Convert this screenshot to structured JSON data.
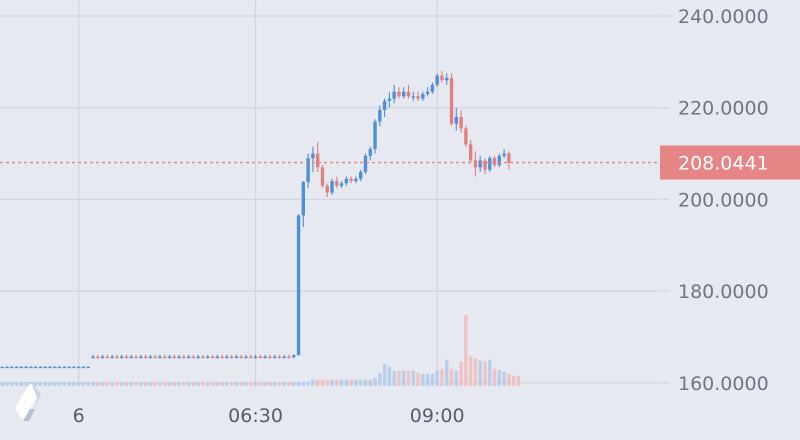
{
  "colors": {
    "background": "#e6e9ef",
    "grid": "#cfd5de",
    "up": "#4f8fd6",
    "down": "#e27f7f",
    "volume_up": "#b9cfe9",
    "volume_down": "#efc3c3",
    "axis_text": "#6f7683",
    "price_badge": "#e58585"
  },
  "logo_icon": "diamond-logo-icon",
  "chart_data": {
    "type": "candlestick",
    "title": "",
    "xlabel": "",
    "ylabel": "",
    "ylim": [
      159.3,
      243.5
    ],
    "y_ticks": [
      "240.0000",
      "220.0000",
      "200.0000",
      "180.0000",
      "160.0000"
    ],
    "y_tick_values": [
      240,
      220,
      200,
      180,
      160
    ],
    "x_tick_labels": [
      "6",
      "06:30",
      "09:00"
    ],
    "grid": true,
    "last_price": 208.0441,
    "last_price_label": "208.0441",
    "candles": [
      [
        163.5,
        163.5,
        163.5,
        163.5
      ],
      [
        163.5,
        163.6,
        163.4,
        163.5
      ],
      [
        163.5,
        163.6,
        163.4,
        163.5
      ],
      [
        163.5,
        163.6,
        163.4,
        163.5
      ],
      [
        163.5,
        163.6,
        163.4,
        163.5
      ],
      [
        163.5,
        163.6,
        163.4,
        163.5
      ],
      [
        163.5,
        163.6,
        163.4,
        163.5
      ],
      [
        163.5,
        163.6,
        163.4,
        163.5
      ],
      [
        163.5,
        163.6,
        163.4,
        163.5
      ],
      [
        163.5,
        163.6,
        163.4,
        163.5
      ],
      [
        163.5,
        163.6,
        163.4,
        163.5
      ],
      [
        163.5,
        163.6,
        163.4,
        163.5
      ],
      [
        163.5,
        163.6,
        163.4,
        163.5
      ],
      [
        163.5,
        163.6,
        163.4,
        163.5
      ],
      [
        163.5,
        163.6,
        163.4,
        163.5
      ],
      [
        163.5,
        163.6,
        163.4,
        163.5
      ],
      [
        163.5,
        163.6,
        163.4,
        163.5
      ],
      [
        163.5,
        163.6,
        163.4,
        163.5
      ],
      [
        163.5,
        163.6,
        163.4,
        163.5
      ],
      [
        165.5,
        166.1,
        165.3,
        165.7
      ],
      [
        165.7,
        166.1,
        165.3,
        165.6
      ],
      [
        165.6,
        166.1,
        165.3,
        165.7
      ],
      [
        165.7,
        166.1,
        165.3,
        165.6
      ],
      [
        165.6,
        166.1,
        165.3,
        165.7
      ],
      [
        165.7,
        166.1,
        165.3,
        165.6
      ],
      [
        165.6,
        166.1,
        165.3,
        165.7
      ],
      [
        165.7,
        166.1,
        165.3,
        165.6
      ],
      [
        165.6,
        166.1,
        165.3,
        165.7
      ],
      [
        165.7,
        166.1,
        165.3,
        165.6
      ],
      [
        165.6,
        166.1,
        165.3,
        165.7
      ],
      [
        165.7,
        166.1,
        165.3,
        165.6
      ],
      [
        165.6,
        166.1,
        165.3,
        165.7
      ],
      [
        165.7,
        166.1,
        165.3,
        165.6
      ],
      [
        165.6,
        166.1,
        165.3,
        165.7
      ],
      [
        165.7,
        166.1,
        165.3,
        165.6
      ],
      [
        165.6,
        166.1,
        165.3,
        165.7
      ],
      [
        165.7,
        166.1,
        165.3,
        165.6
      ],
      [
        165.6,
        166.1,
        165.3,
        165.7
      ],
      [
        165.7,
        166.1,
        165.3,
        165.6
      ],
      [
        165.6,
        166.1,
        165.3,
        165.7
      ],
      [
        165.7,
        166.1,
        165.3,
        165.6
      ],
      [
        165.6,
        166.1,
        165.3,
        165.7
      ],
      [
        165.7,
        166.1,
        165.3,
        165.6
      ],
      [
        165.6,
        166.1,
        165.3,
        165.7
      ],
      [
        165.7,
        166.1,
        165.3,
        165.6
      ],
      [
        165.6,
        166.1,
        165.3,
        165.7
      ],
      [
        165.7,
        166.1,
        165.3,
        165.6
      ],
      [
        165.6,
        166.1,
        165.3,
        165.7
      ],
      [
        165.7,
        166.1,
        165.3,
        165.6
      ],
      [
        165.6,
        166.1,
        165.3,
        165.7
      ],
      [
        165.7,
        166.1,
        165.3,
        165.6
      ],
      [
        165.6,
        166.1,
        165.3,
        165.7
      ],
      [
        165.7,
        166.1,
        165.3,
        165.6
      ],
      [
        165.6,
        166.1,
        165.3,
        165.7
      ],
      [
        165.7,
        166.1,
        165.3,
        165.6
      ],
      [
        165.6,
        166.1,
        165.3,
        165.7
      ],
      [
        165.7,
        166.1,
        165.3,
        165.6
      ],
      [
        165.6,
        166.1,
        165.3,
        165.7
      ],
      [
        165.7,
        166.1,
        165.3,
        165.6
      ],
      [
        165.6,
        166.1,
        165.3,
        165.7
      ],
      [
        165.7,
        166.1,
        165.3,
        165.6
      ],
      [
        165.6,
        166.2,
        165.3,
        166.0
      ],
      [
        166.0,
        196.8,
        166.0,
        196.5
      ],
      [
        196.5,
        204.0,
        194.0,
        203.8
      ],
      [
        203.8,
        210.0,
        202.5,
        209.0
      ],
      [
        209.0,
        211.5,
        206.0,
        210.0
      ],
      [
        210.0,
        212.5,
        206.0,
        207.0
      ],
      [
        207.0,
        207.5,
        202.5,
        203.0
      ],
      [
        203.0,
        203.5,
        200.5,
        201.5
      ],
      [
        201.5,
        204.5,
        201.0,
        204.0
      ],
      [
        204.0,
        205.0,
        202.5,
        203.0
      ],
      [
        203.0,
        204.0,
        202.5,
        203.5
      ],
      [
        203.5,
        205.0,
        203.0,
        204.5
      ],
      [
        204.5,
        205.0,
        203.5,
        204.0
      ],
      [
        204.0,
        205.0,
        203.5,
        204.5
      ],
      [
        204.5,
        206.5,
        204.0,
        206.0
      ],
      [
        206.0,
        210.0,
        205.5,
        209.5
      ],
      [
        209.5,
        211.5,
        208.5,
        211.0
      ],
      [
        211.0,
        217.5,
        210.0,
        217.0
      ],
      [
        217.0,
        220.5,
        216.0,
        219.5
      ],
      [
        219.5,
        222.0,
        218.0,
        221.5
      ],
      [
        221.5,
        223.5,
        220.0,
        222.0
      ],
      [
        222.0,
        225.0,
        221.0,
        223.5
      ],
      [
        223.5,
        224.5,
        222.0,
        222.5
      ],
      [
        222.5,
        224.5,
        222.0,
        223.5
      ],
      [
        223.5,
        225.0,
        222.0,
        222.5
      ],
      [
        222.5,
        223.5,
        221.5,
        222.5
      ],
      [
        222.5,
        223.5,
        221.5,
        222.0
      ],
      [
        222.0,
        223.5,
        221.5,
        223.0
      ],
      [
        223.0,
        224.5,
        222.5,
        223.5
      ],
      [
        223.5,
        225.5,
        223.0,
        225.0
      ],
      [
        225.0,
        227.5,
        224.5,
        227.0
      ],
      [
        227.0,
        228.0,
        225.5,
        226.0
      ],
      [
        226.0,
        227.5,
        225.0,
        226.5
      ],
      [
        226.5,
        227.5,
        216.0,
        216.5
      ],
      [
        216.5,
        220.0,
        215.0,
        218.0
      ],
      [
        218.0,
        219.5,
        214.5,
        215.5
      ],
      [
        215.5,
        216.0,
        211.5,
        212.0
      ],
      [
        212.0,
        213.0,
        208.0,
        208.5
      ],
      [
        208.5,
        210.5,
        205.0,
        207.0
      ],
      [
        207.0,
        209.5,
        206.0,
        208.5
      ],
      [
        208.5,
        209.0,
        205.5,
        206.5
      ],
      [
        206.5,
        209.5,
        206.0,
        209.0
      ],
      [
        209.0,
        209.5,
        207.0,
        207.5
      ],
      [
        207.5,
        210.0,
        207.0,
        209.5
      ],
      [
        209.5,
        211.0,
        209.0,
        210.0
      ],
      [
        210.0,
        210.5,
        206.5,
        208.0
      ]
    ],
    "volumes": [
      2.1,
      2.1,
      2.1,
      2.1,
      2.1,
      2.1,
      2.1,
      2.1,
      2.1,
      2.1,
      2.1,
      2.1,
      2.1,
      2.1,
      2.1,
      2.1,
      2.1,
      2.1,
      2.1,
      2.1,
      2.1,
      2.1,
      2.1,
      2.1,
      2.1,
      2.1,
      2.1,
      2.1,
      2.1,
      2.1,
      2.1,
      2.1,
      2.1,
      2.1,
      2.1,
      2.1,
      2.1,
      2.1,
      2.1,
      2.1,
      2.1,
      2.1,
      2.1,
      2.1,
      2.1,
      2.1,
      2.1,
      2.1,
      2.1,
      2.1,
      2.1,
      2.1,
      2.1,
      2.1,
      2.1,
      2.1,
      2.1,
      2.1,
      2.1,
      2.1,
      2.1,
      2.1,
      2.1,
      2.1,
      2.1,
      3.2,
      3.2,
      3.2,
      3.2,
      3.2,
      3.2,
      3.2,
      3.2,
      3.2,
      3.2,
      3.2,
      3.2,
      3.2,
      4.1,
      6.6,
      10.9,
      9.6,
      7.6,
      7.6,
      7.6,
      7.6,
      7.6,
      6.6,
      6.1,
      6.1,
      6.1,
      7.6,
      8.6,
      13.2,
      8.6,
      7.6,
      12.2,
      35.5,
      14.7,
      13.7,
      12.7,
      12.2,
      13.2,
      8.6,
      8.1,
      7.1,
      6.1,
      5.1,
      5.1
    ]
  }
}
